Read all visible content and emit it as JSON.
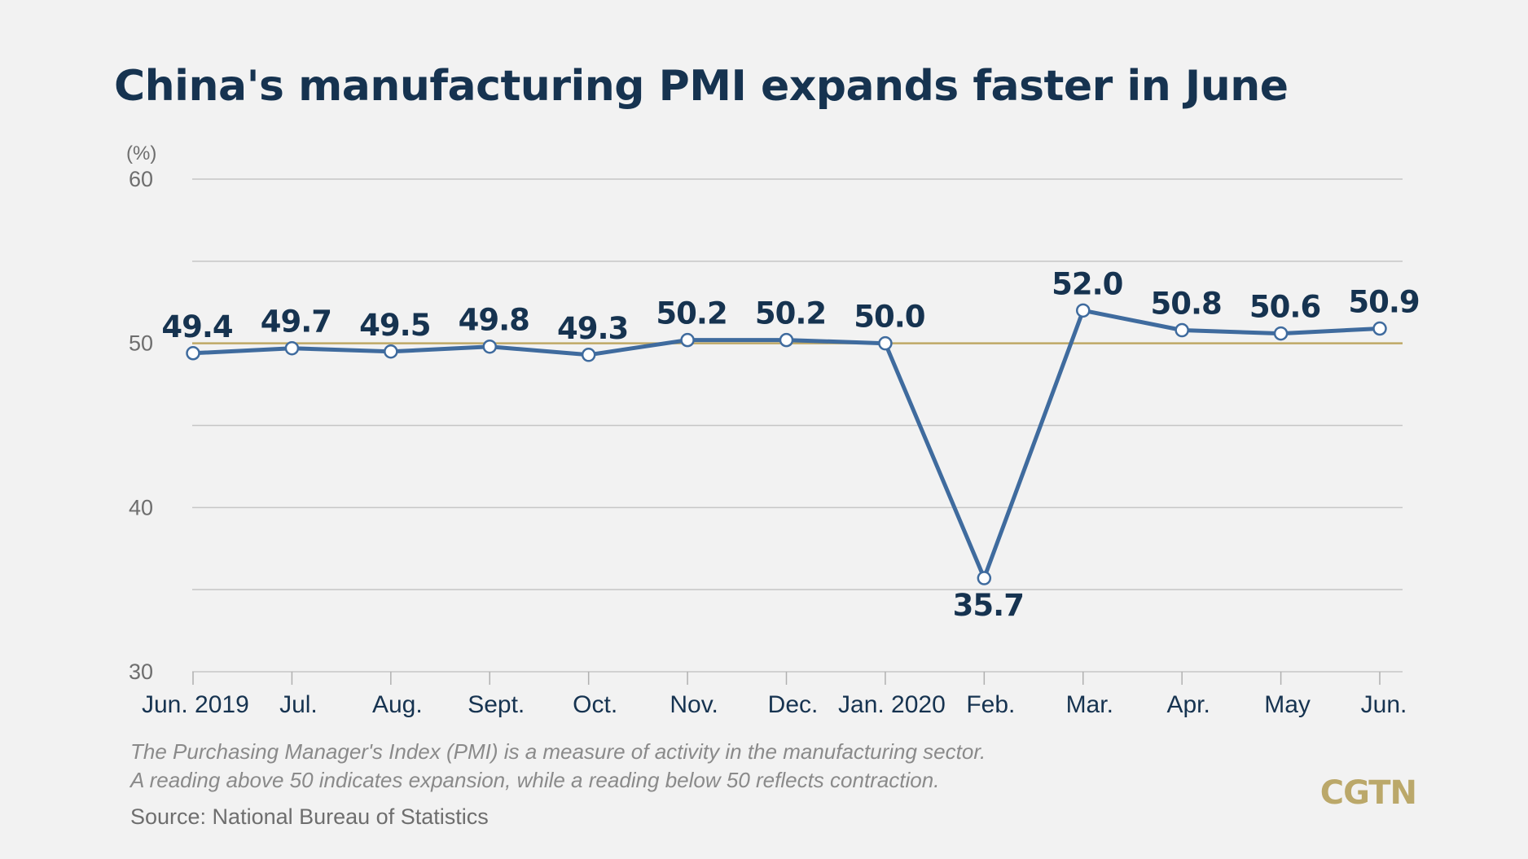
{
  "title": "China's manufacturing PMI expands faster in June",
  "notes": [
    "The Purchasing Manager's Index (PMI) is a measure of activity in the manufacturing sector.",
    "A reading above 50 indicates expansion, while a reading below 50 reflects contraction."
  ],
  "source": "Source: National Bureau of Statistics",
  "logo": "CGTN",
  "colors": {
    "line": "#3f6b9e",
    "reference_line": "#bfa866",
    "title": "#163350",
    "label": "#163350",
    "grid": "#c6c6c6"
  },
  "chart_data": {
    "type": "line",
    "title": "China's manufacturing PMI expands faster in June",
    "ylabel": "(%)",
    "xlabel": "",
    "ylim": [
      30,
      60
    ],
    "yticks": [
      30,
      40,
      50,
      60
    ],
    "grid": true,
    "reference_line": 50,
    "categories": [
      "Jun. 2019",
      "Jul.",
      "Aug.",
      "Sept.",
      "Oct.",
      "Nov.",
      "Dec.",
      "Jan. 2020",
      "Feb.",
      "Mar.",
      "Apr.",
      "May",
      "Jun."
    ],
    "series": [
      {
        "values": [
          49.4,
          49.7,
          49.5,
          49.8,
          49.3,
          50.2,
          50.2,
          50.0,
          35.7,
          52.0,
          50.8,
          50.6,
          50.9
        ],
        "labels": [
          "49.4",
          "49.7",
          "49.5",
          "49.8",
          "49.3",
          "50.2",
          "50.2",
          "50.0",
          "35.7",
          "52.0",
          "50.8",
          "50.6",
          "50.9"
        ]
      }
    ]
  }
}
